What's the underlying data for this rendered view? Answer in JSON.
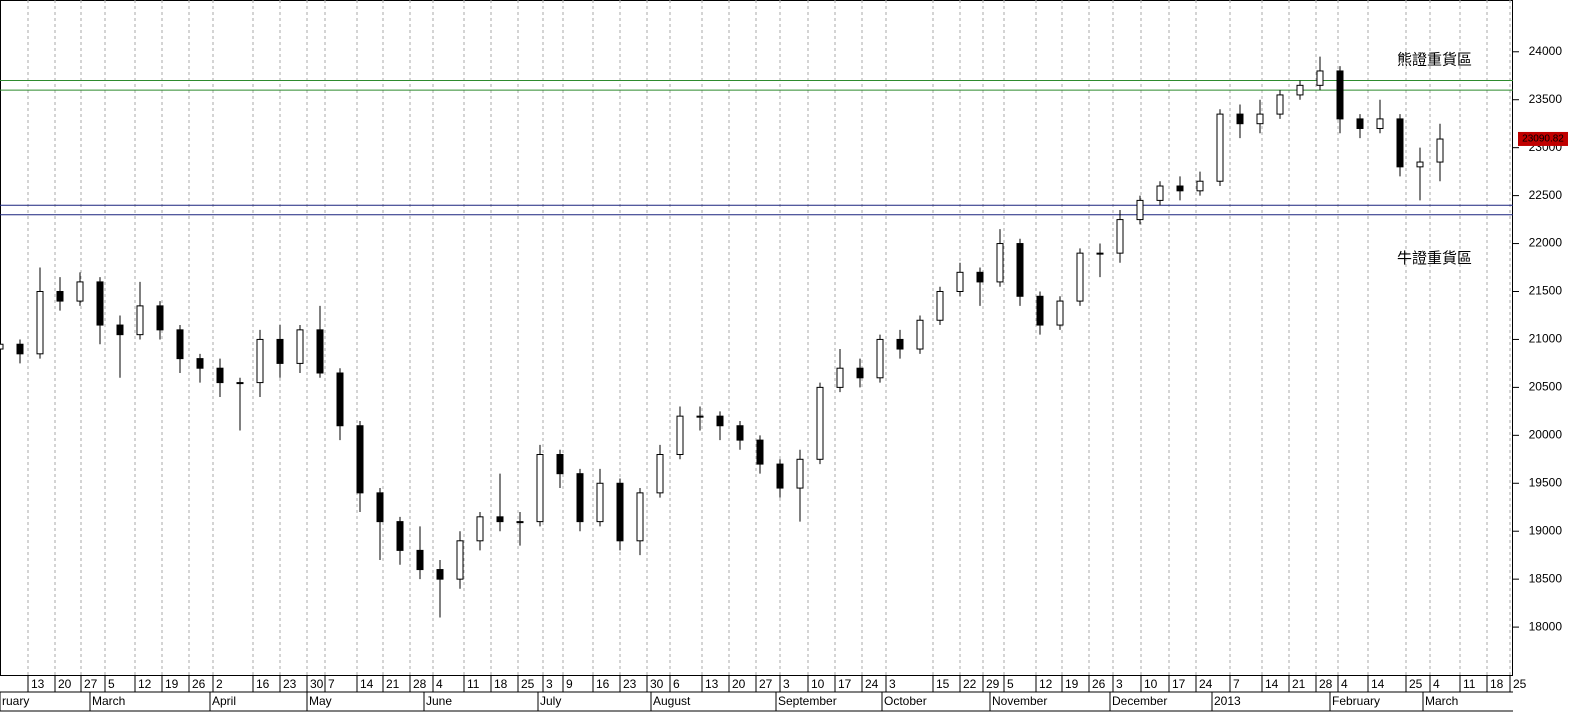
{
  "chart_data": {
    "type": "candlestick",
    "x": [
      0,
      4,
      8,
      12,
      16,
      20,
      24,
      28,
      32,
      36,
      40,
      44,
      48,
      52,
      56,
      60,
      64,
      68,
      72,
      76,
      80,
      84,
      88,
      92,
      96,
      100,
      104,
      108,
      112,
      116,
      120,
      124,
      128,
      132,
      136,
      140,
      144,
      148,
      152,
      156,
      160,
      164,
      168,
      172,
      176,
      180,
      184,
      188,
      192,
      196,
      200,
      204,
      208,
      212,
      216,
      220,
      224,
      228,
      232,
      236,
      240,
      244,
      248,
      252,
      256,
      260,
      264,
      268,
      272,
      276,
      280,
      284,
      288
    ],
    "open": [
      20900,
      20950,
      20850,
      21500,
      21400,
      21600,
      21150,
      21050,
      21350,
      21100,
      20800,
      20700,
      20550,
      20550,
      21000,
      20750,
      21100,
      20650,
      20100,
      19400,
      19100,
      18800,
      18600,
      18500,
      18900,
      19150,
      19100,
      19100,
      19800,
      19600,
      19100,
      19500,
      18900,
      19400,
      19800,
      20200,
      20200,
      20100,
      19950,
      19700,
      19450,
      19750,
      20500,
      20700,
      20600,
      21000,
      20900,
      21200,
      21500,
      21700,
      21600,
      22000,
      21450,
      21150,
      21400,
      21900,
      21900,
      22250,
      22450,
      22600,
      22550,
      22650,
      23350,
      23250,
      23350,
      23550,
      23650,
      23800,
      23300,
      23200,
      23300,
      22800,
      22850
    ],
    "high": [
      21050,
      21000,
      21750,
      21650,
      21700,
      21650,
      21250,
      21600,
      21400,
      21150,
      20850,
      20800,
      20600,
      21100,
      21150,
      21150,
      21350,
      20700,
      20150,
      19450,
      19150,
      19050,
      18700,
      19000,
      19200,
      19600,
      19200,
      19900,
      19850,
      19650,
      19650,
      19550,
      19450,
      19900,
      20300,
      20300,
      20250,
      20150,
      20000,
      19750,
      19850,
      20550,
      20900,
      20800,
      21050,
      21100,
      21250,
      21550,
      21800,
      21750,
      22150,
      22050,
      21500,
      21450,
      21950,
      22000,
      22350,
      22500,
      22650,
      22700,
      22750,
      23400,
      23450,
      23500,
      23600,
      23700,
      23950,
      23850,
      23350,
      23500,
      23350,
      23000,
      23250
    ],
    "low": [
      20800,
      20750,
      20800,
      21300,
      21350,
      20950,
      20600,
      21000,
      21000,
      20650,
      20550,
      20400,
      20050,
      20400,
      20600,
      20650,
      20600,
      19950,
      19200,
      18700,
      18650,
      18500,
      18100,
      18400,
      18800,
      19000,
      18850,
      19050,
      19450,
      19000,
      19050,
      18800,
      18750,
      19350,
      19750,
      20050,
      19950,
      19850,
      19600,
      19350,
      19100,
      19700,
      20450,
      20500,
      20550,
      20800,
      20850,
      21150,
      21450,
      21350,
      21550,
      21350,
      21050,
      21100,
      21350,
      21650,
      21800,
      22200,
      22400,
      22450,
      22500,
      22600,
      23100,
      23150,
      23300,
      23500,
      23600,
      23150,
      23100,
      23150,
      22700,
      22450,
      22650
    ],
    "close": [
      20950,
      20850,
      21500,
      21400,
      21600,
      21150,
      21050,
      21350,
      21100,
      20800,
      20700,
      20550,
      20550,
      21000,
      20750,
      21100,
      20650,
      20100,
      19400,
      19100,
      18800,
      18600,
      18500,
      18900,
      19150,
      19100,
      19100,
      19800,
      19600,
      19100,
      19500,
      18900,
      19400,
      19800,
      20200,
      20200,
      20100,
      19950,
      19700,
      19450,
      19750,
      20500,
      20700,
      20600,
      21000,
      20900,
      21200,
      21500,
      21700,
      21600,
      22000,
      21450,
      21150,
      21400,
      21900,
      21900,
      22250,
      22450,
      22600,
      22550,
      22650,
      23350,
      23250,
      23350,
      23550,
      23650,
      23800,
      23300,
      23200,
      23300,
      22800,
      22850,
      23090
    ],
    "xlim": [
      0,
      302.6
    ],
    "xticks": [
      {
        "value": 5.6,
        "label": "13"
      },
      {
        "value": 11,
        "label": "20"
      },
      {
        "value": 16.2,
        "label": "27"
      },
      {
        "value": 21,
        "label": "5"
      },
      {
        "value": 27,
        "label": "12"
      },
      {
        "value": 32.4,
        "label": "19"
      },
      {
        "value": 37.8,
        "label": "26"
      },
      {
        "value": 42.6,
        "label": "2"
      },
      {
        "value": 50.6,
        "label": "16"
      },
      {
        "value": 56,
        "label": "23"
      },
      {
        "value": 61.4,
        "label": "30"
      },
      {
        "value": 65,
        "label": "7"
      },
      {
        "value": 71.4,
        "label": "14"
      },
      {
        "value": 76.6,
        "label": "21"
      },
      {
        "value": 82,
        "label": "28"
      },
      {
        "value": 86.6,
        "label": "4"
      },
      {
        "value": 92.8,
        "label": "11"
      },
      {
        "value": 98.2,
        "label": "18"
      },
      {
        "value": 103.6,
        "label": "25"
      },
      {
        "value": 108.6,
        "label": "3"
      },
      {
        "value": 112.6,
        "label": "9"
      },
      {
        "value": 118.6,
        "label": "16"
      },
      {
        "value": 124,
        "label": "23"
      },
      {
        "value": 129.4,
        "label": "30"
      },
      {
        "value": 134,
        "label": "6"
      },
      {
        "value": 140.4,
        "label": "13"
      },
      {
        "value": 145.8,
        "label": "20"
      },
      {
        "value": 151.2,
        "label": "27"
      },
      {
        "value": 156,
        "label": "3"
      },
      {
        "value": 161.6,
        "label": "10"
      },
      {
        "value": 167,
        "label": "17"
      },
      {
        "value": 172.4,
        "label": "24"
      },
      {
        "value": 177.2,
        "label": "3"
      },
      {
        "value": 186.6,
        "label": "15"
      },
      {
        "value": 192,
        "label": "22"
      },
      {
        "value": 196.6,
        "label": "29"
      },
      {
        "value": 200.8,
        "label": "5"
      },
      {
        "value": 207.2,
        "label": "12"
      },
      {
        "value": 212.4,
        "label": "19"
      },
      {
        "value": 217.8,
        "label": "26"
      },
      {
        "value": 222.6,
        "label": "3"
      },
      {
        "value": 228.2,
        "label": "10"
      },
      {
        "value": 233.8,
        "label": "17"
      },
      {
        "value": 239.2,
        "label": "24"
      },
      {
        "value": 246,
        "label": "7"
      },
      {
        "value": 252.4,
        "label": "14"
      },
      {
        "value": 257.8,
        "label": "21"
      },
      {
        "value": 263.2,
        "label": "28"
      },
      {
        "value": 267.6,
        "label": "4"
      },
      {
        "value": 273.6,
        "label": "14"
      },
      {
        "value": 281.2,
        "label": "25"
      },
      {
        "value": 286,
        "label": "4"
      },
      {
        "value": 292,
        "label": "11"
      },
      {
        "value": 297.4,
        "label": "18"
      },
      {
        "value": 302,
        "label": "25"
      }
    ],
    "month_ticks": [
      {
        "value": 0,
        "label": "ruary"
      },
      {
        "value": 18,
        "label": "March"
      },
      {
        "value": 42,
        "label": "April"
      },
      {
        "value": 61.4,
        "label": "May"
      },
      {
        "value": 84.8,
        "label": "June"
      },
      {
        "value": 107.6,
        "label": "July"
      },
      {
        "value": 130.2,
        "label": "August"
      },
      {
        "value": 155.2,
        "label": "September"
      },
      {
        "value": 176.4,
        "label": "October"
      },
      {
        "value": 198,
        "label": "November"
      },
      {
        "value": 222,
        "label": "December"
      },
      {
        "value": 242.4,
        "label": "2013"
      },
      {
        "value": 266,
        "label": "February"
      },
      {
        "value": 284.6,
        "label": "March"
      }
    ],
    "ylim": [
      17490,
      24540
    ],
    "yticks": [
      18000,
      18500,
      19000,
      19500,
      20000,
      20500,
      21000,
      21500,
      22000,
      22500,
      23000,
      23500,
      24000
    ],
    "levels": [
      {
        "name": "熊證重貨區",
        "color": "#2e8b2e",
        "values": [
          23700,
          23600
        ]
      },
      {
        "name": "牛證重貨區",
        "color": "#1a237e",
        "values": [
          22400,
          22300
        ]
      }
    ],
    "last_price": 23090.82,
    "up_color": "#ffffff",
    "down_color": "#000000",
    "grid": true
  }
}
